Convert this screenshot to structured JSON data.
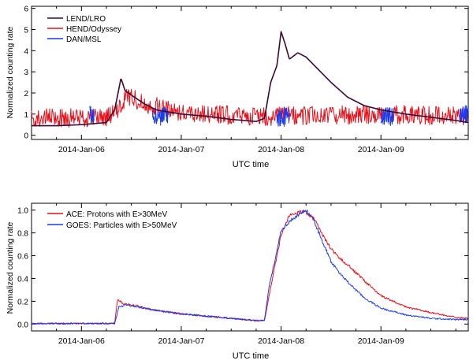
{
  "chart_data": [
    {
      "type": "line",
      "title": "",
      "xlabel": "UTC time",
      "ylabel": "Normalized counting rate",
      "xlim": [
        "2014-01-05 12:00",
        "2014-01-09 21:00"
      ],
      "ylim": [
        -0.2,
        6.1
      ],
      "yticks": [
        0,
        1,
        2,
        3,
        4,
        5,
        6
      ],
      "xticks": [
        "2014-Jan-06",
        "2014-Jan-07",
        "2014-Jan-08",
        "2014-Jan-09"
      ],
      "grid": false,
      "legend_position": "top-left",
      "series": [
        {
          "name": "LEND/LRO",
          "color": "#3a0a35",
          "x": [
            "2014-01-05 12:00",
            "2014-01-05 18:00",
            "2014-01-06 00:00",
            "2014-01-06 06:00",
            "2014-01-06 08:00",
            "2014-01-06 09:30",
            "2014-01-06 10:30",
            "2014-01-06 12:00",
            "2014-01-06 15:00",
            "2014-01-06 18:00",
            "2014-01-07 00:00",
            "2014-01-07 06:00",
            "2014-01-07 12:00",
            "2014-01-07 18:00",
            "2014-01-07 20:00",
            "2014-01-07 21:30",
            "2014-01-07 23:00",
            "2014-01-08 00:00",
            "2014-01-08 01:00",
            "2014-01-08 02:00",
            "2014-01-08 04:00",
            "2014-01-08 06:00",
            "2014-01-08 08:00",
            "2014-01-08 12:00",
            "2014-01-08 16:00",
            "2014-01-08 20:00",
            "2014-01-09 00:00",
            "2014-01-09 06:00",
            "2014-01-09 12:00",
            "2014-01-09 18:00",
            "2014-01-09 21:00"
          ],
          "y": [
            0.45,
            0.45,
            0.5,
            0.6,
            1.2,
            2.7,
            2.1,
            1.9,
            1.5,
            1.2,
            1.0,
            0.9,
            0.75,
            0.65,
            0.8,
            2.5,
            3.3,
            4.9,
            4.3,
            3.6,
            3.9,
            3.7,
            3.3,
            2.5,
            1.8,
            1.4,
            1.2,
            1.0,
            0.85,
            0.7,
            0.6
          ]
        },
        {
          "name": "HEND/Odyssey",
          "color": "#e8101a",
          "x": [
            "2014-01-05 12:00",
            "2014-01-06 06:00",
            "2014-01-06 09:00",
            "2014-01-06 11:00",
            "2014-01-06 15:00",
            "2014-01-07 00:00",
            "2014-01-07 12:00",
            "2014-01-07 20:00",
            "2014-01-08 12:00",
            "2014-01-09 00:00",
            "2014-01-09 12:00",
            "2014-01-09 21:00"
          ],
          "y": [
            0.8,
            0.85,
            1.2,
            1.9,
            1.5,
            1.1,
            0.95,
            0.9,
            0.95,
            1.0,
            0.95,
            0.9
          ]
        },
        {
          "name": "DAN/MSL",
          "color": "#1a3cf0",
          "x": [],
          "y": [],
          "segments": [
            {
              "start": "2014-01-06 02:00",
              "end": "2014-01-06 03:00",
              "level": 1.0
            },
            {
              "start": "2014-01-06 17:00",
              "end": "2014-01-06 21:00",
              "level": 0.9
            },
            {
              "start": "2014-01-07 23:00",
              "end": "2014-01-08 02:00",
              "level": 0.85
            },
            {
              "start": "2014-01-09 00:00",
              "end": "2014-01-09 03:00",
              "level": 0.9
            },
            {
              "start": "2014-01-09 19:00",
              "end": "2014-01-09 21:00",
              "level": 1.0
            }
          ]
        }
      ]
    },
    {
      "type": "line",
      "title": "",
      "xlabel": "UTC time",
      "ylabel": "Normalized counting rate",
      "xlim": [
        "2014-01-05 12:00",
        "2014-01-09 21:00"
      ],
      "ylim": [
        -0.06,
        1.06
      ],
      "yticks": [
        0.0,
        0.2,
        0.4,
        0.6,
        0.8,
        1.0
      ],
      "ytick_labels": [
        "0.0",
        "0.2",
        "0.4",
        "0.6",
        "0.8",
        "1.0"
      ],
      "xticks": [
        "2014-Jan-06",
        "2014-Jan-07",
        "2014-Jan-08",
        "2014-Jan-09"
      ],
      "grid": false,
      "legend_position": "top-left",
      "series": [
        {
          "name": "ACE: Protons with E>30MeV",
          "color": "#e8101a",
          "x": [
            "2014-01-05 12:00",
            "2014-01-06 08:00",
            "2014-01-06 08:40",
            "2014-01-06 10:00",
            "2014-01-06 12:00",
            "2014-01-06 18:00",
            "2014-01-07 00:00",
            "2014-01-07 06:00",
            "2014-01-07 12:00",
            "2014-01-07 18:00",
            "2014-01-07 20:00",
            "2014-01-07 21:30",
            "2014-01-08 00:00",
            "2014-01-08 02:00",
            "2014-01-08 04:00",
            "2014-01-08 06:00",
            "2014-01-08 08:00",
            "2014-01-08 10:00",
            "2014-01-08 12:00",
            "2014-01-08 14:00",
            "2014-01-08 16:00",
            "2014-01-08 18:00",
            "2014-01-08 20:00",
            "2014-01-09 00:00",
            "2014-01-09 06:00",
            "2014-01-09 12:00",
            "2014-01-09 18:00",
            "2014-01-09 21:00"
          ],
          "y": [
            0.005,
            0.005,
            0.22,
            0.18,
            0.17,
            0.12,
            0.09,
            0.07,
            0.05,
            0.03,
            0.03,
            0.32,
            0.78,
            0.95,
            0.98,
            0.98,
            0.92,
            0.78,
            0.66,
            0.58,
            0.52,
            0.45,
            0.38,
            0.25,
            0.15,
            0.1,
            0.06,
            0.05
          ]
        },
        {
          "name": "GOES: Particles with E>50MeV",
          "color": "#1a3cf0",
          "x": [
            "2014-01-05 12:00",
            "2014-01-06 08:00",
            "2014-01-06 09:00",
            "2014-01-06 11:00",
            "2014-01-06 12:00",
            "2014-01-06 18:00",
            "2014-01-07 00:00",
            "2014-01-07 06:00",
            "2014-01-07 12:00",
            "2014-01-07 18:00",
            "2014-01-07 20:00",
            "2014-01-07 21:00",
            "2014-01-08 00:00",
            "2014-01-08 02:00",
            "2014-01-08 04:00",
            "2014-01-08 06:00",
            "2014-01-08 08:00",
            "2014-01-08 10:00",
            "2014-01-08 12:00",
            "2014-01-08 14:00",
            "2014-01-08 16:00",
            "2014-01-08 18:00",
            "2014-01-08 20:00",
            "2014-01-09 00:00",
            "2014-01-09 06:00",
            "2014-01-09 12:00",
            "2014-01-09 18:00",
            "2014-01-09 21:00"
          ],
          "y": [
            0.005,
            0.005,
            0.15,
            0.17,
            0.16,
            0.12,
            0.09,
            0.07,
            0.05,
            0.03,
            0.03,
            0.3,
            0.82,
            0.9,
            0.95,
            1.0,
            0.9,
            0.72,
            0.55,
            0.45,
            0.37,
            0.3,
            0.23,
            0.14,
            0.08,
            0.05,
            0.04,
            0.04
          ]
        }
      ]
    }
  ]
}
